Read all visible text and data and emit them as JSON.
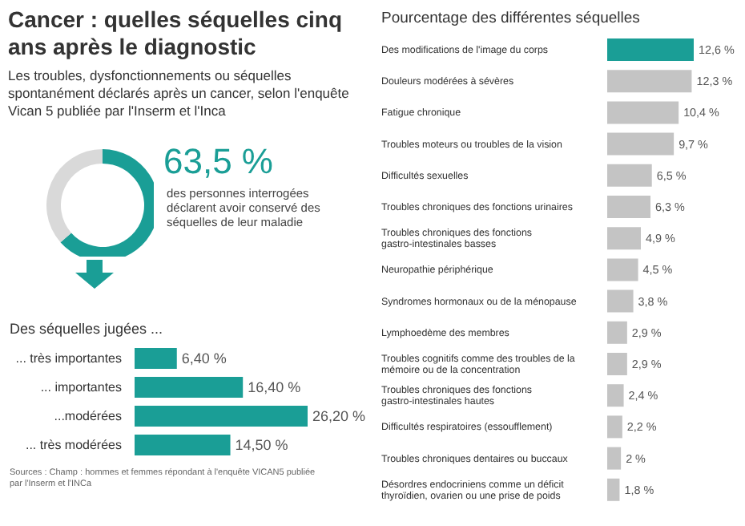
{
  "chart_data": [
    {
      "type": "donut",
      "title": "Cancer : quelles séquelles cinq ans après le diagnostic",
      "subtitle": "Les troubles, dysfonctionnements ou séquelles spontanément déclarés après un cancer, selon l'enquête Vican 5 publiée par l'Inserm et l'Inca",
      "categories": [
        null,
        null
      ],
      "values": [
        63.5,
        36.5
      ],
      "colors": [
        "#1a9e96",
        "#d9d9d9"
      ],
      "value_labels": [
        "63,5 %",
        null
      ],
      "annotations": [
        "des personnes interrogées déclarent avoir conservé des séquelles de leur maladie"
      ]
    },
    {
      "type": "bar",
      "orientation": "horizontal",
      "title": "Des séquelles jugées ...",
      "categories": [
        "... très importantes",
        "... importantes",
        "...modérées",
        "... très modérées"
      ],
      "values": [
        6.4,
        16.4,
        26.2,
        14.5
      ],
      "color": "#1a9e96",
      "value_labels": [
        "6,40 %",
        "16,40 %",
        "26,20 %",
        "14,50 %"
      ],
      "annotations": [
        "Sources : Champ : hommes et femmes répondant à l'enquête VICAN5 publiée par l'Inserm et l'INCa"
      ]
    },
    {
      "type": "bar",
      "orientation": "horizontal",
      "title": "Pourcentage des différentes séquelles",
      "categories": [
        "Des modifications de l'image du corps",
        "Douleurs modérées à sévères",
        "Fatigue chronique",
        "Troubles moteurs ou troubles de la vision",
        "Difficultés sexuelles",
        "Troubles chroniques des fonctions urinaires",
        "Troubles chroniques des fonctions gastro-intestinales basses",
        "Neuropathie périphérique",
        "Syndromes hormonaux ou de la ménopause",
        "Lymphoedème des membres",
        "Troubles cognitifs comme des troubles de la mémoire ou de la concentration",
        "Troubles chroniques des fonctions gastro-intestinales hautes",
        "Difficultés respiratoires (essoufflement)",
        "Troubles chroniques dentaires ou buccaux",
        "Désordres endocriniens comme un déficit thyroïdien, ovarien ou une prise de poids"
      ],
      "values": [
        12.6,
        12.3,
        10.4,
        9.7,
        6.5,
        6.3,
        4.9,
        4.5,
        3.8,
        2.9,
        2.9,
        2.4,
        2.2,
        2,
        1.8
      ],
      "colors": [
        "#1a9e96",
        "#c4c4c4",
        "#c4c4c4",
        "#c4c4c4",
        "#c4c4c4",
        "#c4c4c4",
        "#c4c4c4",
        "#c4c4c4",
        "#c4c4c4",
        "#c4c4c4",
        "#c4c4c4",
        "#c4c4c4",
        "#c4c4c4",
        "#c4c4c4",
        "#c4c4c4"
      ],
      "value_labels": [
        "12,6 %",
        "12,3 %",
        "10,4 %",
        "9,7 %",
        "6,5 %",
        "6,3 %",
        "4,9 %",
        "4,5 %",
        "3,8 %",
        "2,9 %",
        "2,9 %",
        "2,4 %",
        "2,2 %",
        "2 %",
        "1,8 %"
      ]
    }
  ]
}
